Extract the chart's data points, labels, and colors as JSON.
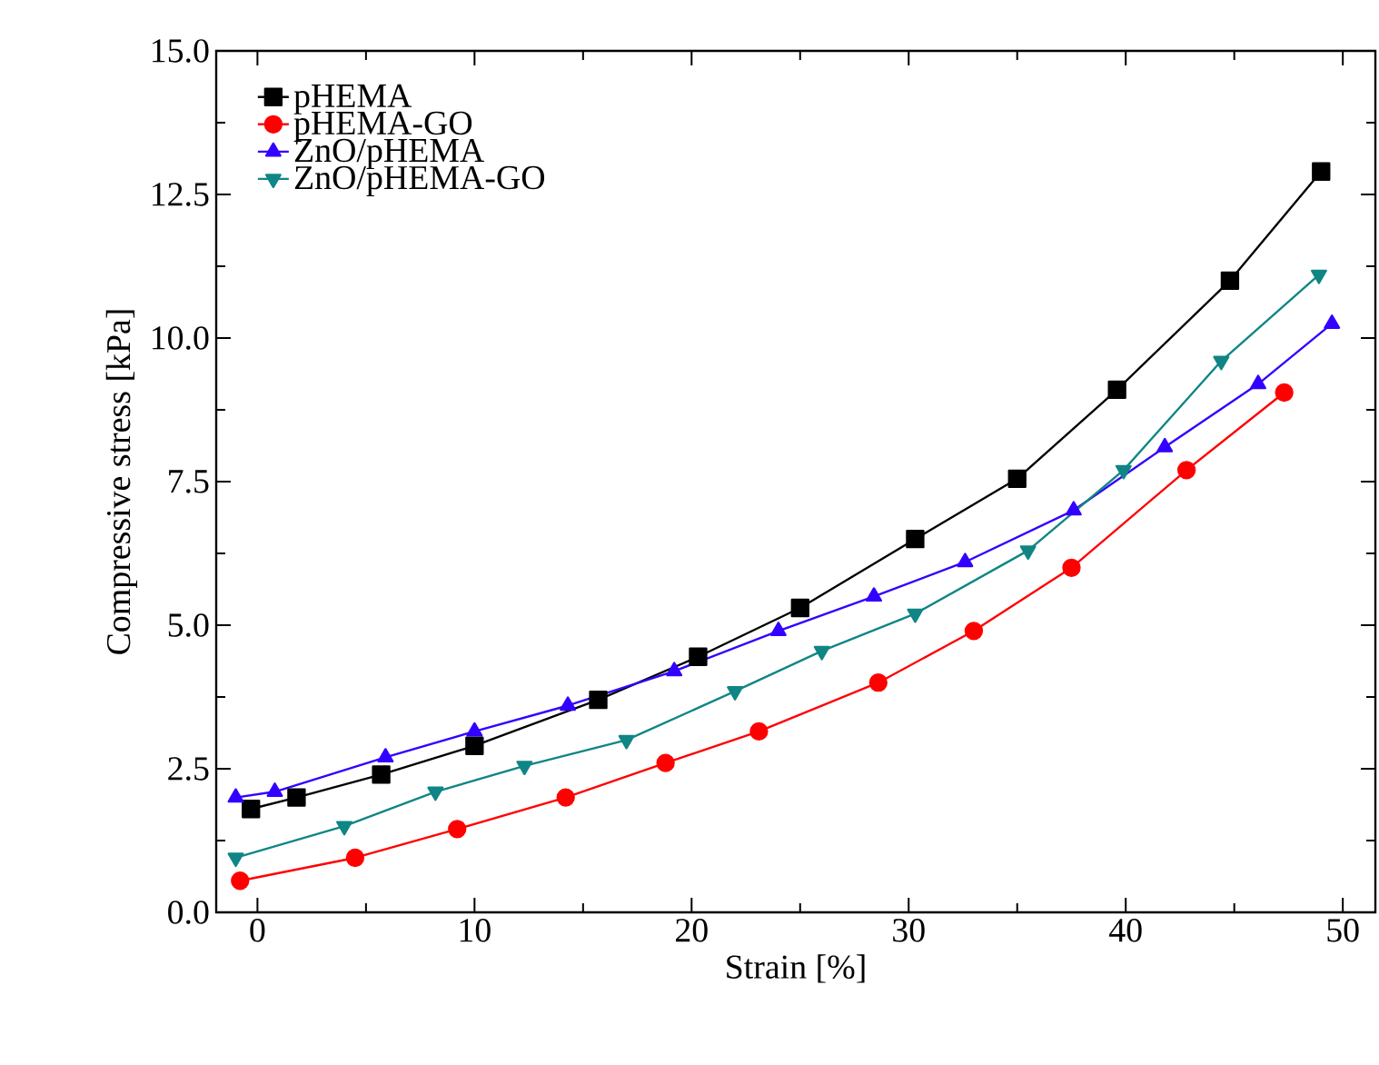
{
  "chart_data": {
    "type": "line",
    "xlabel": "Strain [%]",
    "ylabel": "Compressive stress [kPa]",
    "xlim": [
      -1.9,
      51.5
    ],
    "ylim": [
      0,
      15
    ],
    "xticks": [
      0,
      10,
      20,
      30,
      40,
      50
    ],
    "yticks": [
      {
        "value": 0,
        "label": "0.0"
      },
      {
        "value": 2.5,
        "label": "2.5"
      },
      {
        "value": 5,
        "label": "5.0"
      },
      {
        "value": 7.5,
        "label": "7.5"
      },
      {
        "value": 10,
        "label": "10.0"
      },
      {
        "value": 12.5,
        "label": "12.5"
      },
      {
        "value": 15,
        "label": "15.0"
      }
    ],
    "grid": false,
    "legend": "top left",
    "line_style": "solid",
    "series": [
      {
        "name": "pHEMA",
        "color": "#000000",
        "marker": "square",
        "x": [
          -0.3,
          1.8,
          5.7,
          10,
          15.7,
          20.3,
          25,
          30.3,
          35,
          39.6,
          44.8,
          49
        ],
        "values": [
          1.8,
          2.0,
          2.4,
          2.9,
          3.7,
          4.45,
          5.3,
          6.5,
          7.55,
          9.1,
          11.0,
          12.9
        ]
      },
      {
        "name": "pHEMA-GO",
        "color": "#ff0000",
        "marker": "circle",
        "x": [
          -0.8,
          4.5,
          9.2,
          14.2,
          18.8,
          23.1,
          28.6,
          33,
          37.5,
          42.8,
          47.3
        ],
        "values": [
          0.55,
          0.95,
          1.45,
          2.0,
          2.6,
          3.15,
          4.0,
          4.9,
          6.0,
          7.7,
          9.05
        ]
      },
      {
        "name": "ZnO/pHEMA",
        "color": "#3300ff",
        "marker": "triangle",
        "x": [
          -1,
          0.8,
          5.9,
          10,
          14.3,
          19.2,
          24,
          28.4,
          32.6,
          37.6,
          41.8,
          46.1,
          49.5
        ],
        "values": [
          2.0,
          2.1,
          2.7,
          3.15,
          3.6,
          4.2,
          4.9,
          5.5,
          6.1,
          7.0,
          8.1,
          9.2,
          10.25
        ]
      },
      {
        "name": "ZnO/pHEMA-GO",
        "color": "#108585",
        "marker": "triangle-down",
        "x": [
          -1,
          4,
          8.2,
          12.3,
          17,
          22,
          26,
          30.3,
          35.5,
          39.9,
          44.4,
          48.9
        ],
        "values": [
          0.95,
          1.5,
          2.1,
          2.55,
          3.0,
          3.85,
          4.55,
          5.2,
          6.3,
          7.7,
          9.6,
          11.1
        ]
      }
    ]
  }
}
